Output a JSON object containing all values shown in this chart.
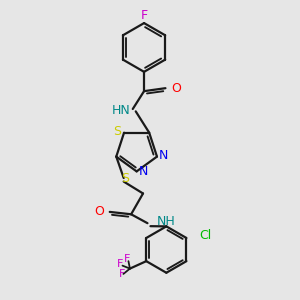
{
  "background_color": "#e6e6e6",
  "line_color": "#1a1a1a",
  "line_width": 1.6,
  "figsize": [
    3.0,
    3.0
  ],
  "dpi": 100,
  "colors": {
    "F": "#cc00cc",
    "O": "#ff0000",
    "N": "#0000ee",
    "S": "#cccc00",
    "Cl": "#00bb00",
    "NH": "#008888",
    "C": "#1a1a1a"
  }
}
